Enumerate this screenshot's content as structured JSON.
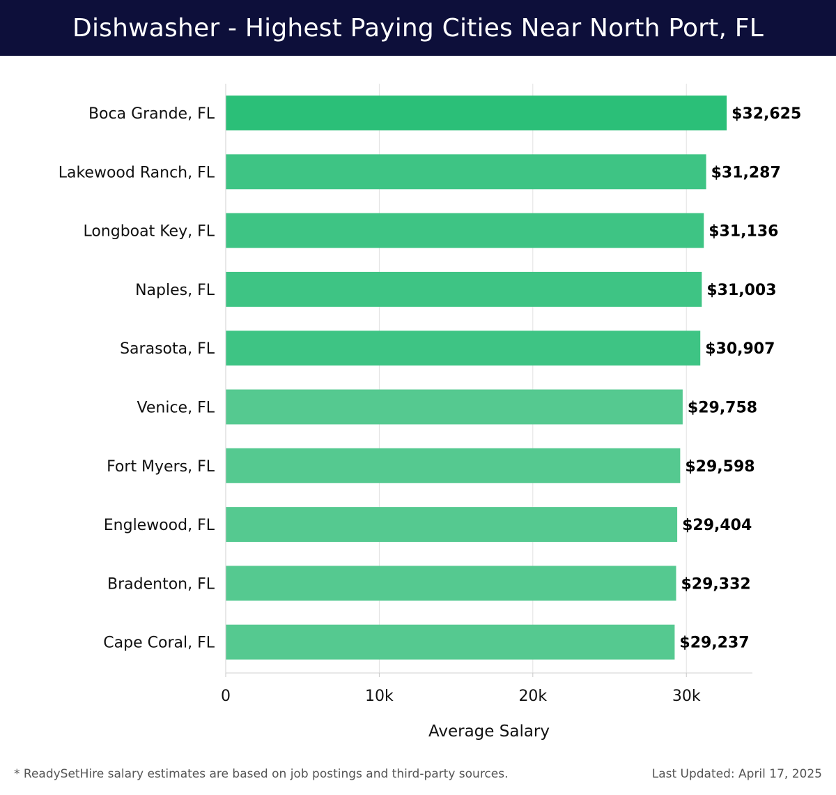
{
  "header": {
    "title": "Dishwasher - Highest Paying Cities Near North Port, FL"
  },
  "footer": {
    "note": "* ReadySetHire salary estimates are based on job postings and third-party sources.",
    "updated": "Last Updated: April 17, 2025"
  },
  "colors": {
    "header_bg": "#0d0f3a",
    "bar_top": "#2bbf78",
    "bar_mid": "#3ec484",
    "bar_low": "#55c990"
  },
  "chart_data": {
    "type": "bar",
    "orientation": "horizontal",
    "categories": [
      "Boca Grande, FL",
      "Lakewood Ranch, FL",
      "Longboat Key, FL",
      "Naples, FL",
      "Sarasota, FL",
      "Venice, FL",
      "Fort Myers, FL",
      "Englewood, FL",
      "Bradenton, FL",
      "Cape Coral, FL"
    ],
    "values": [
      32625,
      31287,
      31136,
      31003,
      30907,
      29758,
      29598,
      29404,
      29332,
      29237
    ],
    "value_labels": [
      "$32,625",
      "$31,287",
      "$31,136",
      "$31,003",
      "$30,907",
      "$29,758",
      "$29,598",
      "$29,404",
      "$29,332",
      "$29,237"
    ],
    "xlabel": "Average Salary",
    "ylabel": "",
    "xlim": [
      0,
      34300
    ],
    "xticks": [
      0,
      10000,
      20000,
      30000
    ],
    "xtick_labels": [
      "0",
      "10k",
      "20k",
      "30k"
    ],
    "grid": "vertical"
  }
}
